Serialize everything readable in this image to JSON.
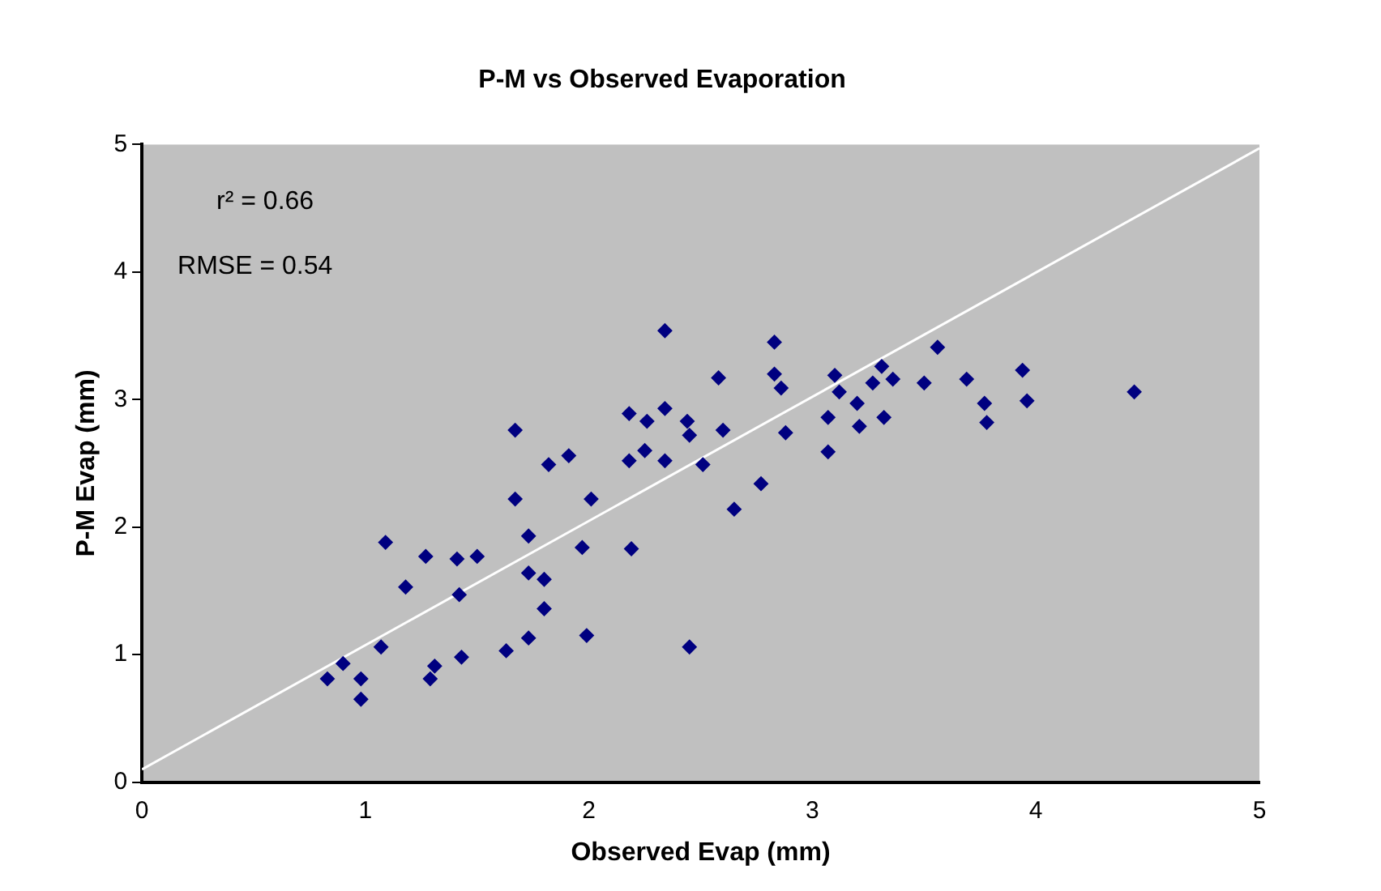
{
  "chart_data": {
    "type": "scatter",
    "title": "P-M vs Observed Evaporation",
    "xlabel": "Observed Evap (mm)",
    "ylabel": "P-M Evap (mm)",
    "annotations": [
      "r² = 0.66",
      "RMSE = 0.54"
    ],
    "xlim": [
      0,
      5
    ],
    "xticks": [
      0,
      1,
      2,
      3,
      4,
      5
    ],
    "ylim": [
      0,
      5
    ],
    "yticks": [
      0,
      1,
      2,
      3,
      4,
      5
    ],
    "grid": false,
    "legend": false,
    "marker": "diamond",
    "series": [
      {
        "color": "#000080",
        "x": [
          0.83,
          0.9,
          0.98,
          0.98,
          1.07,
          1.09,
          1.18,
          1.27,
          1.29,
          1.31,
          1.41,
          1.42,
          1.43,
          1.5,
          1.63,
          1.67,
          1.67,
          1.73,
          1.73,
          1.73,
          1.8,
          1.8,
          1.82,
          1.91,
          1.97,
          1.99,
          2.01,
          2.18,
          2.18,
          2.19,
          2.25,
          2.26,
          2.34,
          2.34,
          2.34,
          2.44,
          2.45,
          2.45,
          2.51,
          2.58,
          2.6,
          2.65,
          2.77,
          2.83,
          2.83,
          2.86,
          2.88,
          3.07,
          3.07,
          3.1,
          3.12,
          3.2,
          3.21,
          3.27,
          3.31,
          3.32,
          3.36,
          3.5,
          3.56,
          3.69,
          3.77,
          3.78,
          3.94,
          3.96,
          4.44
        ],
        "values": [
          0.81,
          0.93,
          0.81,
          0.65,
          1.06,
          1.88,
          1.53,
          1.77,
          0.81,
          0.91,
          1.75,
          1.47,
          0.98,
          1.77,
          1.03,
          2.76,
          2.22,
          1.93,
          1.64,
          1.13,
          1.59,
          1.36,
          2.49,
          2.56,
          1.84,
          1.15,
          2.22,
          2.52,
          2.89,
          1.83,
          2.6,
          2.83,
          3.54,
          2.93,
          2.52,
          2.83,
          2.72,
          1.06,
          2.49,
          3.17,
          2.76,
          2.14,
          2.34,
          3.45,
          3.2,
          3.09,
          2.74,
          2.86,
          2.59,
          3.19,
          3.06,
          2.97,
          2.79,
          3.13,
          3.26,
          2.86,
          3.16,
          3.13,
          3.41,
          3.16,
          2.97,
          2.82,
          3.23,
          2.99,
          3.06
        ]
      },
      {
        "type": "line",
        "color": "#ffffff",
        "x": [
          0,
          5
        ],
        "values": [
          0.1,
          4.97
        ],
        "marker": "none"
      }
    ]
  }
}
